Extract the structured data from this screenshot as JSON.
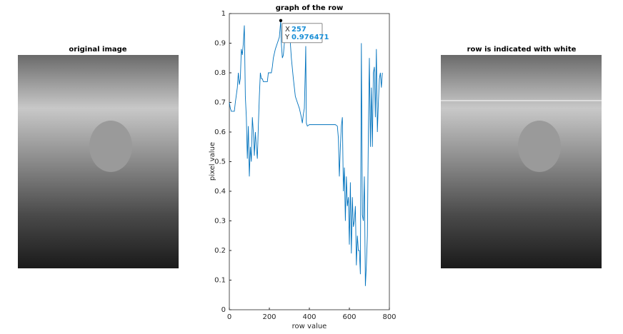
{
  "panels": {
    "left_title": "original image",
    "right_title": "row is indicated with white"
  },
  "chart_data": {
    "type": "line",
    "title": "graph of the row",
    "xlabel": "row value",
    "ylabel": "pixel value",
    "xlim": [
      0,
      800
    ],
    "xticks": [
      0,
      200,
      400,
      600,
      800
    ],
    "ylim": [
      0,
      1
    ],
    "yticks": [
      0,
      0.1,
      0.2,
      0.3,
      0.4,
      0.5,
      0.6,
      0.7,
      0.8,
      0.9,
      1
    ],
    "annotation": {
      "x_label": "X",
      "x": 257,
      "y_label": "Y",
      "y": 0.976471
    },
    "series": [
      {
        "color": "#0072bd",
        "x": [
          0,
          5,
          10,
          20,
          25,
          30,
          40,
          45,
          50,
          55,
          60,
          65,
          70,
          75,
          80,
          85,
          90,
          95,
          100,
          105,
          110,
          115,
          120,
          125,
          130,
          135,
          140,
          145,
          150,
          155,
          160,
          165,
          170,
          180,
          190,
          195,
          200,
          210,
          215,
          220,
          230,
          240,
          250,
          257,
          260,
          265,
          270,
          275,
          280,
          290,
          300,
          305,
          310,
          320,
          330,
          340,
          350,
          360,
          365,
          370,
          375,
          380,
          382,
          385,
          390,
          400,
          450,
          500,
          530,
          540,
          545,
          550,
          555,
          560,
          565,
          570,
          575,
          580,
          585,
          590,
          595,
          600,
          605,
          610,
          615,
          620,
          625,
          630,
          635,
          640,
          645,
          650,
          655,
          660,
          665,
          670,
          675,
          680,
          685,
          690,
          695,
          700,
          705,
          710,
          715,
          720,
          725,
          730,
          735,
          740,
          745,
          750,
          755,
          760,
          765
        ],
        "values": [
          0.7,
          0.68,
          0.67,
          0.67,
          0.67,
          0.7,
          0.75,
          0.8,
          0.76,
          0.78,
          0.88,
          0.86,
          0.9,
          0.96,
          0.72,
          0.65,
          0.51,
          0.62,
          0.45,
          0.55,
          0.5,
          0.65,
          0.6,
          0.52,
          0.6,
          0.55,
          0.51,
          0.62,
          0.72,
          0.8,
          0.78,
          0.78,
          0.77,
          0.77,
          0.77,
          0.8,
          0.8,
          0.8,
          0.82,
          0.85,
          0.88,
          0.9,
          0.92,
          0.976471,
          0.9,
          0.85,
          0.86,
          0.9,
          0.92,
          0.94,
          0.93,
          0.9,
          0.85,
          0.78,
          0.72,
          0.7,
          0.68,
          0.65,
          0.63,
          0.66,
          0.68,
          0.82,
          0.89,
          0.63,
          0.62,
          0.625,
          0.625,
          0.625,
          0.625,
          0.62,
          0.58,
          0.45,
          0.55,
          0.62,
          0.65,
          0.4,
          0.48,
          0.3,
          0.45,
          0.35,
          0.38,
          0.22,
          0.43,
          0.19,
          0.38,
          0.28,
          0.3,
          0.35,
          0.15,
          0.25,
          0.2,
          0.2,
          0.12,
          0.9,
          0.32,
          0.3,
          0.45,
          0.08,
          0.15,
          0.25,
          0.6,
          0.85,
          0.55,
          0.75,
          0.55,
          0.8,
          0.82,
          0.65,
          0.88,
          0.6,
          0.7,
          0.78,
          0.8,
          0.75,
          0.8
        ]
      }
    ]
  }
}
